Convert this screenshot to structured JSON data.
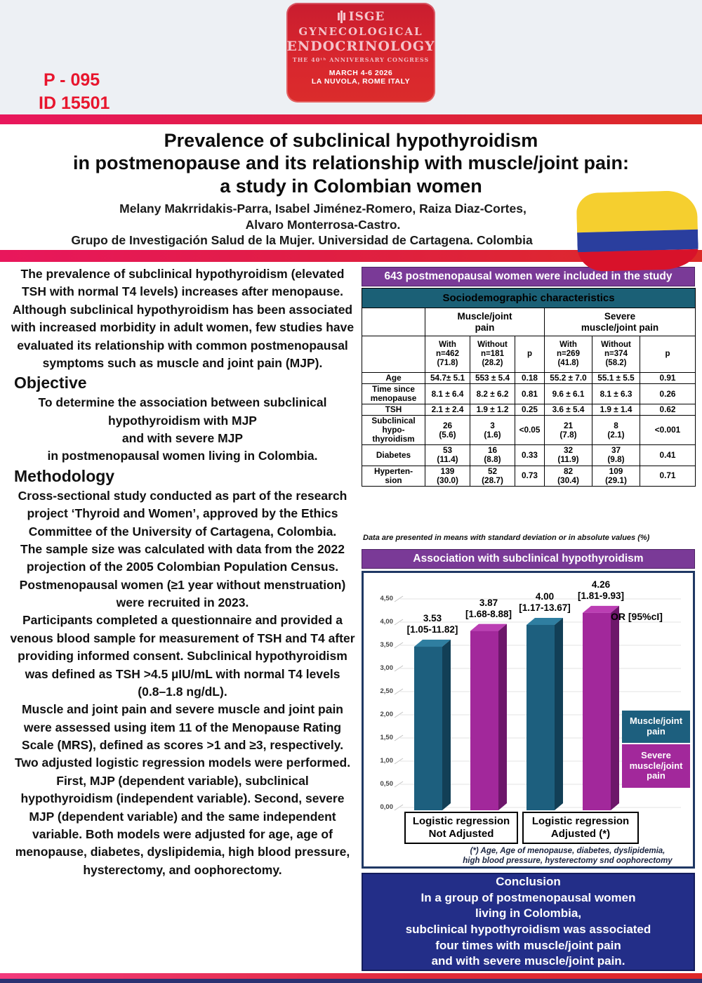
{
  "poster": {
    "code": "P - 095",
    "id": "ID 15501",
    "logo": {
      "society": "ISGE",
      "line1": "GYNECOLOGICAL",
      "line2": "ENDOCRINOLOGY",
      "line3": "THE 40ᵗʰ ANNIVERSARY CONGRESS",
      "date": "MARCH 4-6 2026",
      "venue": "LA NUVOLA, ROME ITALY"
    },
    "title": "Prevalence of subclinical hypothyroidism\nin postmenopause and its relationship with muscle/joint pain:\na study in Colombian women",
    "authors": "Melany Makrridakis-Parra, Isabel Jiménez-Romero, Raiza Diaz-Cortes,\nAlvaro Monterrosa-Castro.",
    "affiliation": "Grupo de Investigación Salud de la Mujer. Universidad de Cartagena. Colombia"
  },
  "intro": "The prevalence of subclinical hypothyroidism (elevated TSH with normal T4 levels) increases after menopause. Although subclinical hypothyroidism has been associated with increased morbidity in adult women, few studies have evaluated its relationship with common postmenopausal symptoms such as muscle and joint pain (MJP).",
  "objective": {
    "heading": "Objective",
    "body": "To determine the association between subclinical hypothyroidism with MJP\nand with severe MJP\nin postmenopausal women living in Colombia."
  },
  "methodology": {
    "heading": "Methodology",
    "body": "Cross-sectional study conducted as part of the research project ‘Thyroid and Women’, approved by the Ethics Committee of the University of Cartagena, Colombia.\nThe sample size was calculated with data from the 2022 projection of the 2005 Colombian Population Census.\nPostmenopausal women (≥1 year without menstruation) were recruited in 2023.\nParticipants completed a questionnaire and provided a venous blood sample for measurement of TSH and T4 after providing informed consent. Subclinical hypothyroidism was defined as TSH >4.5 µIU/mL with normal T4 levels (0.8–1.8 ng/dL).\nMuscle and joint pain and severe muscle and joint pain were assessed using item 11 of the Menopause Rating Scale (MRS), defined as scores >1 and ≥3, respectively.\nTwo adjusted logistic regression models were performed. First, MJP (dependent variable), subclinical hypothyroidism (independent variable). Second, severe MJP (dependent variable) and the same independent variable. Both models were adjusted for age, age of menopause, diabetes, dyslipidemia, high blood pressure, hysterectomy, and oophorectomy."
  },
  "study_banner": "643 postmenopausal women were included in the study",
  "table": {
    "header": "Sociodemographic characteristics",
    "group1": "Muscle/joint\npain",
    "group2": "Severe\nmuscle/joint pain",
    "subheaders": [
      "With\nn=462\n(71.8)",
      "Without\nn=181\n(28.2)",
      "p",
      "With\nn=269\n(41.8)",
      "Without\nn=374\n(58.2)",
      "p"
    ],
    "rows": [
      {
        "label": "Age",
        "values": [
          "54.7± 5.1",
          "553 ± 5.4",
          "0.18",
          "55.2 ± 7.0",
          "55.1 ± 5.5",
          "0.91"
        ]
      },
      {
        "label": "Time since\nmenopause",
        "values": [
          "8.1 ± 6.4",
          "8.2 ± 6.2",
          "0.81",
          "9.6 ± 6.1",
          "8.1 ± 6.3",
          "0.26"
        ]
      },
      {
        "label": "TSH",
        "values": [
          "2.1 ± 2.4",
          "1.9 ± 1.2",
          "0.25",
          "3.6 ± 5.4",
          "1.9 ± 1.4",
          "0.62"
        ]
      },
      {
        "label": "Subclinical\nhypo-\nthyroidism",
        "values": [
          "26\n(5.6)",
          "3\n(1.6)",
          "<0.05",
          "21\n(7.8)",
          "8\n(2.1)",
          "<0.001"
        ]
      },
      {
        "label": "Diabetes",
        "values": [
          "53\n(11.4)",
          "16\n(8.8)",
          "0.33",
          "32\n(11.9)",
          "37\n(9.8)",
          "0.41"
        ]
      },
      {
        "label": "Hyperten-\nsion",
        "values": [
          "139\n(30.0)",
          "52\n(28.7)",
          "0.73",
          "82\n(30.4)",
          "109\n(29.1)",
          "0.71"
        ]
      }
    ],
    "footnote": "Data are presented in means with standard deviation or in absolute values (%)"
  },
  "chart_banner": "Association with subclinical hypothyroidism",
  "chart": {
    "or_label": "OR [95%cI]",
    "legend": [
      {
        "label": "Muscle/joint\npain",
        "color": "#1d5f7e"
      },
      {
        "label": "Severe\nmuscle/joint\npain",
        "color": "#a2289b"
      }
    ],
    "groups": [
      "Logistic regression\nNot Adjusted",
      "Logistic regression\nAdjusted (*)"
    ],
    "footnote": "(*) Age, Age of menopause, diabetes, dyslipidemia,\nhigh blood pressure, hysterectomy snd oophorectomy"
  },
  "chart_data": {
    "type": "bar",
    "title": "Association with subclinical hypothyroidism",
    "categories": [
      "Logistic regression Not Adjusted",
      "Logistic regression Adjusted (*)"
    ],
    "series": [
      {
        "name": "Muscle/joint pain",
        "values": [
          3.53,
          4.0
        ],
        "ci": [
          "1.05-11.82",
          "1.17-13.67"
        ],
        "color": "#1d5f7e",
        "color_light": "#2f7ea0",
        "color_dark": "#123f56"
      },
      {
        "name": "Severe muscle/joint pain",
        "values": [
          3.87,
          4.26
        ],
        "ci": [
          "1.68-8.88",
          "1.81-9.93"
        ],
        "color": "#a2289b",
        "color_light": "#bb3eb3",
        "color_dark": "#6d176a"
      }
    ],
    "ylabel": "OR [95%cI]",
    "ylim": [
      0,
      4.5
    ],
    "yticks": [
      "0,00",
      "0,50",
      "1,00",
      "1,50",
      "2,00",
      "2,50",
      "3,00",
      "3,50",
      "4,00",
      "4,50"
    ],
    "grid": true,
    "legend_position": "right"
  },
  "conclusion": "Conclusion\nIn a group of postmenopausal women\nliving in Colombia,\nsubclinical hypothyroidism was associated\nfour times with muscle/joint pain\nand with severe muscle/joint pain.",
  "colors": {
    "banner_purple": "#7a3a97",
    "table_header_teal": "#1b6076",
    "bar_teal": "#1d5f7e",
    "bar_magenta": "#a2289b",
    "conclusion_navy": "#232e88",
    "accent_red": "#dc2a27",
    "accent_pink": "#e8175c",
    "poster_code_red": "#e8152d"
  }
}
